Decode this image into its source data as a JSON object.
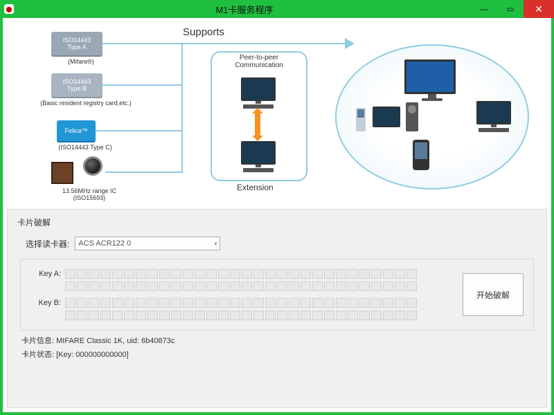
{
  "window": {
    "title": "M1卡服务程序",
    "minimize": "—",
    "maximize": "▭",
    "close": "✕"
  },
  "diagram": {
    "supports_label": "Supports",
    "tile1_l1": "ISO14443",
    "tile1_l2": "Type A",
    "tile1_cap": "(Mifare®)",
    "tile2_l1": "ISO14443",
    "tile2_l2": "Type B",
    "tile2_cap": "(Basic resident registry card,etc.)",
    "tile3_l1": "Felica™",
    "tile3_cap": "(ISO14443 Type C)",
    "tile4_cap_l1": "13.56MHz range IC",
    "tile4_cap_l2": "(ISO15693)",
    "p2p_title_l1": "Peer-to-peer",
    "p2p_title_l2": "Communication",
    "extension_label": "Extension"
  },
  "panel": {
    "title": "卡片破解",
    "reader_label": "选择读卡器:",
    "reader_value": "ACS ACR122 0",
    "key_a_label": "Key A:",
    "key_b_label": "Key B:",
    "key_cells_per_row": 30,
    "start_label": "开始破解",
    "card_info_label": "卡片信息: ",
    "card_info_value": "MIFARE Classic 1K, uid: 6b40873c",
    "card_status_label": "卡片状态: ",
    "card_status_value": "[Key: 000000000000]"
  }
}
